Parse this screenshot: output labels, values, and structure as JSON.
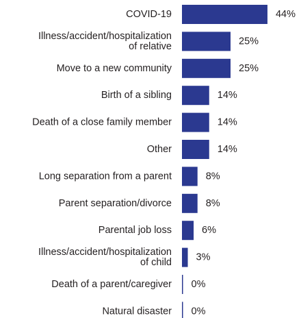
{
  "chart_data": {
    "type": "bar",
    "orientation": "horizontal",
    "bar_color": "#2b3990",
    "value_suffix": "%",
    "xlim": [
      0,
      44
    ],
    "grid": false,
    "legend": "none",
    "categories": [
      [
        "COVID-19"
      ],
      [
        "Illness/accident/hospitalization",
        "of relative"
      ],
      [
        "Move to a new community"
      ],
      [
        "Birth of a sibling"
      ],
      [
        "Death of a close family member"
      ],
      [
        "Other"
      ],
      [
        "Long separation from a parent"
      ],
      [
        "Parent separation/divorce"
      ],
      [
        "Parental job loss"
      ],
      [
        "Illness/accident/hospitalization",
        "of child"
      ],
      [
        "Death of a parent/caregiver"
      ],
      [
        "Natural disaster"
      ]
    ],
    "values": [
      44,
      25,
      25,
      14,
      14,
      14,
      8,
      8,
      6,
      3,
      0,
      0
    ],
    "value_labels": [
      "44%",
      "25%",
      "25%",
      "14%",
      "14%",
      "14%",
      "8%",
      "8%",
      "6%",
      "3%",
      "0%",
      "0%"
    ]
  }
}
